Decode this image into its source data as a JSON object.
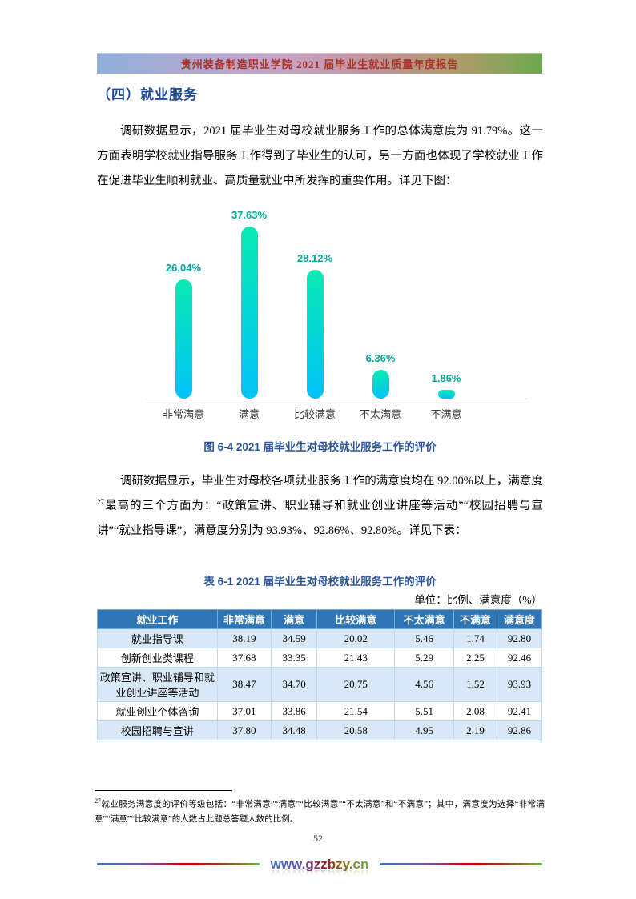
{
  "header": {
    "report_title": "贵州装备制造职业学院 2021 届毕业生就业质量年度报告"
  },
  "doc": {
    "section_heading": "（四）就业服务",
    "para1": "调研数据显示，2021 届毕业生对母校就业服务工作的总体满意度为 91.79%。这一方面表明学校就业指导服务工作得到了毕业生的认可，另一方面也体现了学校就业工作在促进毕业生顺利就业、高质量就业中所发挥的重要作用。详见下图：",
    "para2_before_sup": "调研数据显示，毕业生对母校各项就业服务工作的满意度均在 92.00%以上，满意度",
    "para2_sup": "27",
    "para2_after_sup": "最高的三个方面为：“政策宣讲、职业辅导和就业创业讲座等活动”“校园招聘与宣讲”“就业指导课”，满意度分别为 93.93%、92.86%、92.80%。详见下表：",
    "fig_caption": "图 6-4 2021 届毕业生对母校就业服务工作的评价",
    "table_caption": "表 6-1 2021 届毕业生对母校就业服务工作的评价",
    "unit_note": "单位：比例、满意度（%）"
  },
  "chart_data": {
    "type": "bar",
    "categories": [
      "非常满意",
      "满意",
      "比较满意",
      "不太满意",
      "不满意"
    ],
    "values": [
      26.04,
      37.63,
      28.12,
      6.36,
      1.86
    ],
    "value_labels": [
      "26.04%",
      "37.63%",
      "28.12%",
      "6.36%",
      "1.86%"
    ],
    "title": "图 6-4 2021 届毕业生对母校就业服务工作的评价",
    "xlabel": "",
    "ylabel": "",
    "ylim": [
      0,
      40
    ],
    "grid": false,
    "legend": false,
    "bar_color_top": "#0be9b2",
    "bar_color_bottom": "#00c2f8",
    "value_label_color": "#00a79b",
    "axis_line_color": "#d9d9d9"
  },
  "table": {
    "headers": [
      "就业工作",
      "非常满意",
      "满意",
      "比较满意",
      "不太满意",
      "不满意",
      "满意度"
    ],
    "col_widths": [
      "27%",
      "12.1%",
      "10.3%",
      "17.5%",
      "13.3%",
      "9.7%",
      "10.1%"
    ],
    "rows": [
      [
        "就业指导课",
        "38.19",
        "34.59",
        "20.02",
        "5.46",
        "1.74",
        "92.80"
      ],
      [
        "创新创业类课程",
        "37.68",
        "33.35",
        "21.43",
        "5.29",
        "2.25",
        "92.46"
      ],
      [
        "政策宣讲、职业辅导和就业创业讲座等活动",
        "38.47",
        "34.70",
        "20.75",
        "4.56",
        "1.52",
        "93.93"
      ],
      [
        "就业创业个体咨询",
        "37.01",
        "33.86",
        "21.54",
        "5.51",
        "2.08",
        "92.41"
      ],
      [
        "校园招聘与宣讲",
        "37.80",
        "34.48",
        "20.58",
        "4.95",
        "2.19",
        "92.86"
      ]
    ],
    "header_bg": "#2e75b6",
    "alt_row_bg": "#d9e8f6"
  },
  "footnote": {
    "sup": "27",
    "text": "就业服务满意度的评价等级包括：“非常满意”“满意”“比较满意”“不太满意”和“不满意”；其中，满意度为选择“非常满意”“满意”“比较满意”的人数占此题总答题人数的比例。"
  },
  "footer": {
    "page_number": "52",
    "website": "www.gzzbzy.cn"
  },
  "colors": {
    "heading_blue": "#1f4b9b",
    "caption_blue": "#2e5597",
    "header_bar_text_red": "#a93226"
  }
}
